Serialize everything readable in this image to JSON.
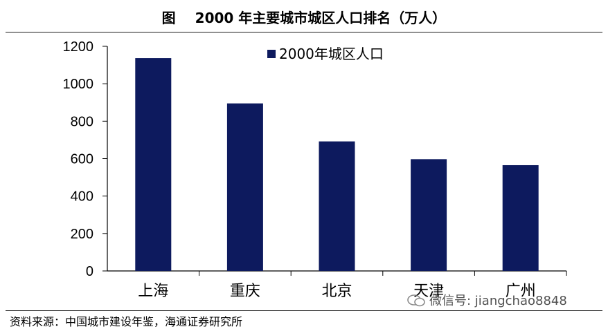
{
  "header": {
    "figure_label": "图",
    "title_text": "2000 年主要城市城区人口排名（万人）"
  },
  "footer": {
    "source": "资料来源：中国城市建设年鉴，海通证券研究所",
    "watermark": "微信号: jiangchao8848"
  },
  "colors": {
    "bar": "#0d1a5e",
    "axis": "#000000"
  },
  "chart_data": {
    "type": "bar",
    "title": "2000 年主要城市城区人口排名（万人）",
    "categories": [
      "上海",
      "重庆",
      "北京",
      "天津",
      "广州"
    ],
    "series": [
      {
        "name": "2000年城区人口",
        "values": [
          1137,
          895,
          692,
          597,
          565
        ]
      }
    ],
    "yticks": [
      "0",
      "200",
      "400",
      "600",
      "800",
      "1000",
      "1200"
    ],
    "ylim": [
      0,
      1200
    ],
    "xlabel": "",
    "ylabel": "",
    "grid": false,
    "legend_position": "top-right"
  }
}
